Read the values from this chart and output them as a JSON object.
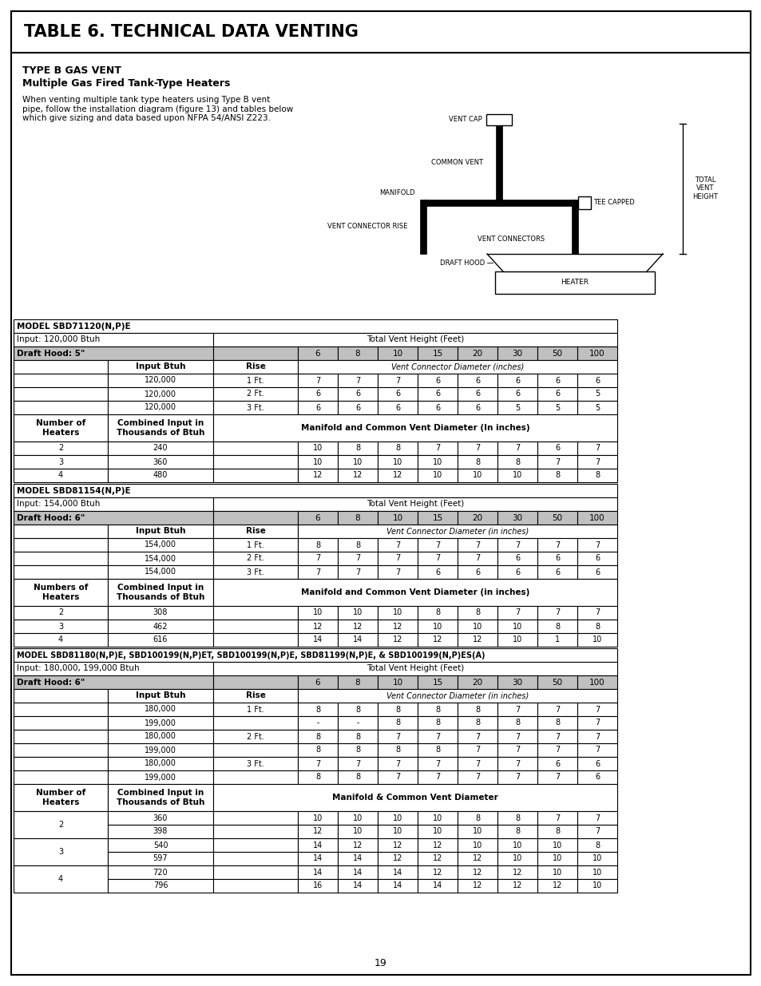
{
  "page_title": "TABLE 6. TECHNICAL DATA VENTING",
  "page_number": "19",
  "diagram_title_left": "TYPE B GAS VENT",
  "diagram_subtitle": "Multiple Gas Fired Tank-Type Heaters",
  "diagram_text": "When venting multiple tank type heaters using Type B vent\npipe, follow the installation diagram (figure 13) and tables below\nwhich give sizing and data based upon NFPA 54/ANSI Z223.",
  "table1": {
    "model": "MODEL SBD71120(N,P)E",
    "input_label": "Input: 120,000 Btuh",
    "draft_hood": "Draft Hood: 5\"",
    "vent_header": "Total Vent Height (Feet)",
    "vent_heights": [
      "6",
      "8",
      "10",
      "15",
      "20",
      "30",
      "50",
      "100"
    ],
    "connector_header": "Vent Connector Diameter (inches)",
    "connector_rows": [
      [
        "120,000",
        "1 Ft.",
        "7",
        "7",
        "7",
        "6",
        "6",
        "6",
        "6",
        "6"
      ],
      [
        "120,000",
        "2 Ft.",
        "6",
        "6",
        "6",
        "6",
        "6",
        "6",
        "6",
        "5"
      ],
      [
        "120,000",
        "3 Ft.",
        "6",
        "6",
        "6",
        "6",
        "6",
        "5",
        "5",
        "5"
      ]
    ],
    "manifold_header": "Manifold and Common Vent Diameter (In inches)",
    "heater_col_header": "Number of\nHeaters",
    "combined_col_header": "Combined Input in\nThousands of Btuh",
    "manifold_rows": [
      [
        "2",
        "240",
        "10",
        "8",
        "8",
        "7",
        "7",
        "7",
        "6",
        "7"
      ],
      [
        "3",
        "360",
        "10",
        "10",
        "10",
        "10",
        "8",
        "8",
        "7",
        "7"
      ],
      [
        "4",
        "480",
        "12",
        "12",
        "12",
        "10",
        "10",
        "10",
        "8",
        "8"
      ]
    ]
  },
  "table2": {
    "model": "MODEL SBD81154(N,P)E",
    "input_label": "Input: 154,000 Btuh",
    "draft_hood": "Draft Hood: 6\"",
    "vent_header": "Total Vent Height (Feet)",
    "vent_heights": [
      "6",
      "8",
      "10",
      "15",
      "20",
      "30",
      "50",
      "100"
    ],
    "connector_header": "Vent Connector Diameter (in inches)",
    "connector_rows": [
      [
        "154,000",
        "1 Ft.",
        "8",
        "8",
        "7",
        "7",
        "7",
        "7",
        "7",
        "7"
      ],
      [
        "154,000",
        "2 Ft.",
        "7",
        "7",
        "7",
        "7",
        "7",
        "6",
        "6",
        "6"
      ],
      [
        "154,000",
        "3 Ft.",
        "7",
        "7",
        "7",
        "6",
        "6",
        "6",
        "6",
        "6"
      ]
    ],
    "manifold_header": "Manifold and Common Vent Diameter (in inches)",
    "heater_col_header": "Numbers of\nHeaters",
    "combined_col_header": "Combined Input in\nThousands of Btuh",
    "manifold_rows": [
      [
        "2",
        "308",
        "10",
        "10",
        "10",
        "8",
        "8",
        "7",
        "7",
        "7"
      ],
      [
        "3",
        "462",
        "12",
        "12",
        "12",
        "10",
        "10",
        "10",
        "8",
        "8"
      ],
      [
        "4",
        "616",
        "14",
        "14",
        "12",
        "12",
        "12",
        "10",
        "1",
        "10"
      ]
    ]
  },
  "table3": {
    "model": "MODEL SBD81180(N,P)E, SBD100199(N,P)ET, SBD100199(N,P)E, SBD81199(N,P)E, & SBD100199(N,P)ES(A)",
    "input_label": "Input: 180,000, 199,000 Btuh",
    "draft_hood": "Draft Hood: 6\"",
    "vent_header": "Total Vent Height (Feet)",
    "vent_heights": [
      "6",
      "8",
      "10",
      "15",
      "20",
      "30",
      "50",
      "100"
    ],
    "connector_header": "Vent Connector Diameter (in inches)",
    "connector_rows": [
      [
        "180,000",
        "1 Ft.",
        "8",
        "8",
        "8",
        "8",
        "8",
        "7",
        "7",
        "7"
      ],
      [
        "199,000",
        "",
        "-",
        "-",
        "8",
        "8",
        "8",
        "8",
        "8",
        "7"
      ],
      [
        "180,000",
        "2 Ft.",
        "8",
        "8",
        "7",
        "7",
        "7",
        "7",
        "7",
        "7"
      ],
      [
        "199,000",
        "",
        "8",
        "8",
        "8",
        "8",
        "7",
        "7",
        "7",
        "7"
      ],
      [
        "180,000",
        "3 Ft.",
        "7",
        "7",
        "7",
        "7",
        "7",
        "7",
        "6",
        "6"
      ],
      [
        "199,000",
        "",
        "8",
        "8",
        "7",
        "7",
        "7",
        "7",
        "7",
        "6"
      ]
    ],
    "manifold_header": "Manifold & Common Vent Diameter",
    "heater_col_header": "Number of\nHeaters",
    "combined_col_header": "Combined Input in\nThousands of Btuh",
    "manifold_rows": [
      [
        "2",
        "360",
        "10",
        "10",
        "10",
        "10",
        "8",
        "8",
        "7",
        "7"
      ],
      [
        "2",
        "398",
        "12",
        "10",
        "10",
        "10",
        "10",
        "8",
        "8",
        "7"
      ],
      [
        "3",
        "540",
        "14",
        "12",
        "12",
        "12",
        "10",
        "10",
        "10",
        "8"
      ],
      [
        "3",
        "597",
        "14",
        "14",
        "12",
        "12",
        "12",
        "10",
        "10",
        "10"
      ],
      [
        "4",
        "720",
        "14",
        "14",
        "14",
        "12",
        "12",
        "12",
        "10",
        "10"
      ],
      [
        "4",
        "796",
        "16",
        "14",
        "14",
        "14",
        "12",
        "12",
        "12",
        "10"
      ]
    ]
  }
}
